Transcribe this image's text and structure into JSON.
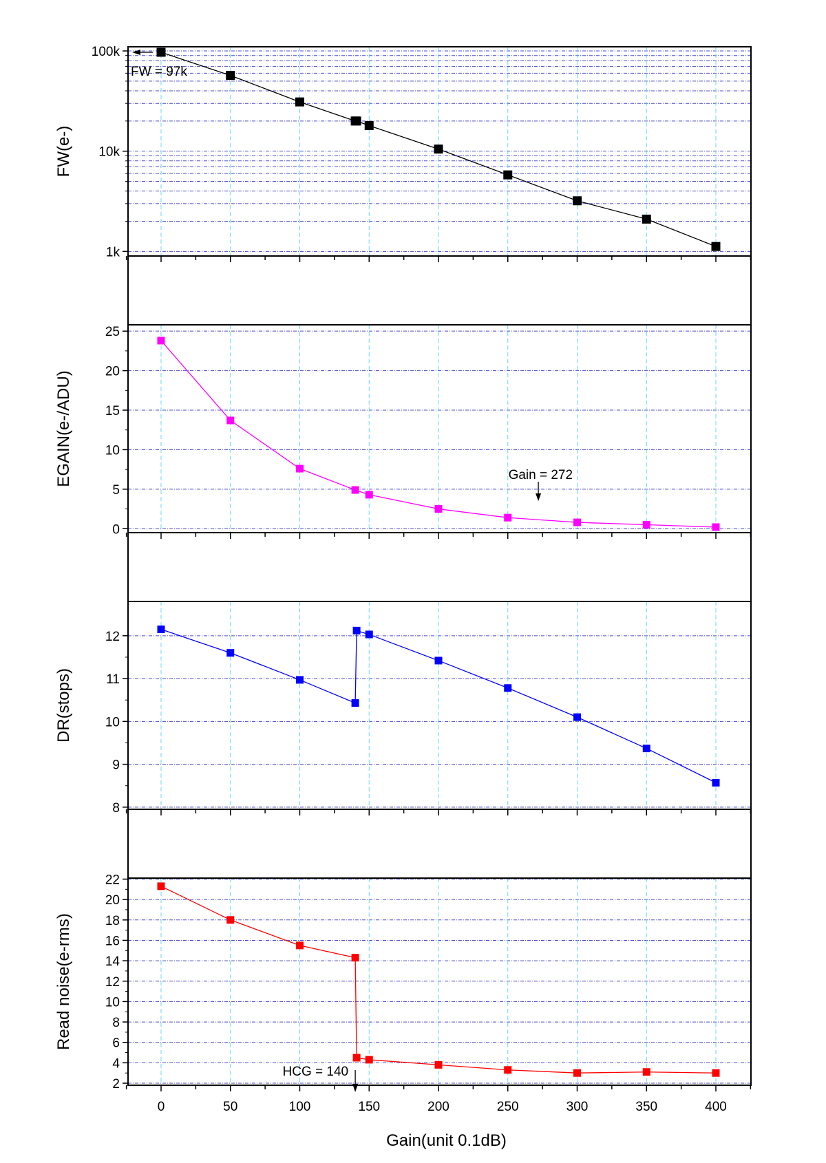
{
  "chart_data": [
    {
      "id": "fw",
      "type": "line",
      "ylabel": "FW(e-)",
      "yscale": "log",
      "ylim": [
        900,
        110000
      ],
      "xlim": [
        -25,
        425
      ],
      "y_ticks": [
        1000,
        10000,
        100000
      ],
      "y_tick_labels": [
        "1k",
        "10k",
        "100k"
      ],
      "color": "#000000",
      "x": [
        0,
        50,
        100,
        140,
        141,
        150,
        200,
        250,
        300,
        350,
        400
      ],
      "values": [
        97000,
        57000,
        31000,
        20000,
        20000,
        18000,
        10500,
        5800,
        3200,
        2100,
        1120
      ],
      "annotations": [
        {
          "text": "FW = 97k",
          "x": 0,
          "y": 97000
        }
      ]
    },
    {
      "id": "egain",
      "type": "line",
      "ylabel": "EGAIN(e-/ADU)",
      "yscale": "linear",
      "ylim": [
        -0.5,
        25.8
      ],
      "xlim": [
        -25,
        425
      ],
      "y_ticks": [
        0,
        5,
        10,
        15,
        20,
        25
      ],
      "y_tick_labels": [
        "0",
        "5",
        "10",
        "15",
        "20",
        "25"
      ],
      "color": "#ff00ff",
      "x": [
        0,
        50,
        100,
        140,
        150,
        200,
        250,
        300,
        350,
        400
      ],
      "values": [
        23.8,
        13.7,
        7.6,
        4.9,
        4.3,
        2.5,
        1.4,
        0.8,
        0.5,
        0.2
      ],
      "annotations": [
        {
          "text": "Gain = 272",
          "x": 272,
          "y": 1.5
        }
      ]
    },
    {
      "id": "dr",
      "type": "line",
      "ylabel": "DR(stops)",
      "yscale": "linear",
      "ylim": [
        7.95,
        12.8
      ],
      "xlim": [
        -25,
        425
      ],
      "y_ticks": [
        8,
        9,
        10,
        11,
        12
      ],
      "y_tick_labels": [
        "8",
        "9",
        "10",
        "11",
        "12"
      ],
      "color": "#0000ff",
      "x": [
        0,
        50,
        100,
        140,
        141,
        150,
        200,
        250,
        300,
        350,
        400
      ],
      "values": [
        12.15,
        11.6,
        10.97,
        10.43,
        12.12,
        12.03,
        11.42,
        10.78,
        10.1,
        9.37,
        8.57
      ]
    },
    {
      "id": "noise",
      "type": "line",
      "ylabel": "Read noise(e-rms)",
      "xlabel": "Gain(unit 0.1dB)",
      "yscale": "linear",
      "ylim": [
        1.8,
        22.1
      ],
      "xlim": [
        -25,
        425
      ],
      "x_ticks": [
        0,
        50,
        100,
        150,
        200,
        250,
        300,
        350,
        400
      ],
      "x_tick_labels": [
        "0",
        "50",
        "100",
        "150",
        "200",
        "250",
        "300",
        "350",
        "400"
      ],
      "y_ticks": [
        2,
        4,
        6,
        8,
        10,
        12,
        14,
        16,
        18,
        20,
        22
      ],
      "y_tick_labels": [
        "2",
        "4",
        "6",
        "8",
        "10",
        "12",
        "14",
        "16",
        "18",
        "20",
        "22"
      ],
      "color": "#ff0000",
      "x": [
        0,
        50,
        100,
        140,
        141,
        150,
        200,
        250,
        300,
        350,
        400
      ],
      "values": [
        21.3,
        18.0,
        15.5,
        14.3,
        4.5,
        4.3,
        3.8,
        3.3,
        3.0,
        3.1,
        3.0
      ],
      "annotations": [
        {
          "text": "HCG = 140",
          "x": 140,
          "y": 2.0
        }
      ]
    }
  ]
}
